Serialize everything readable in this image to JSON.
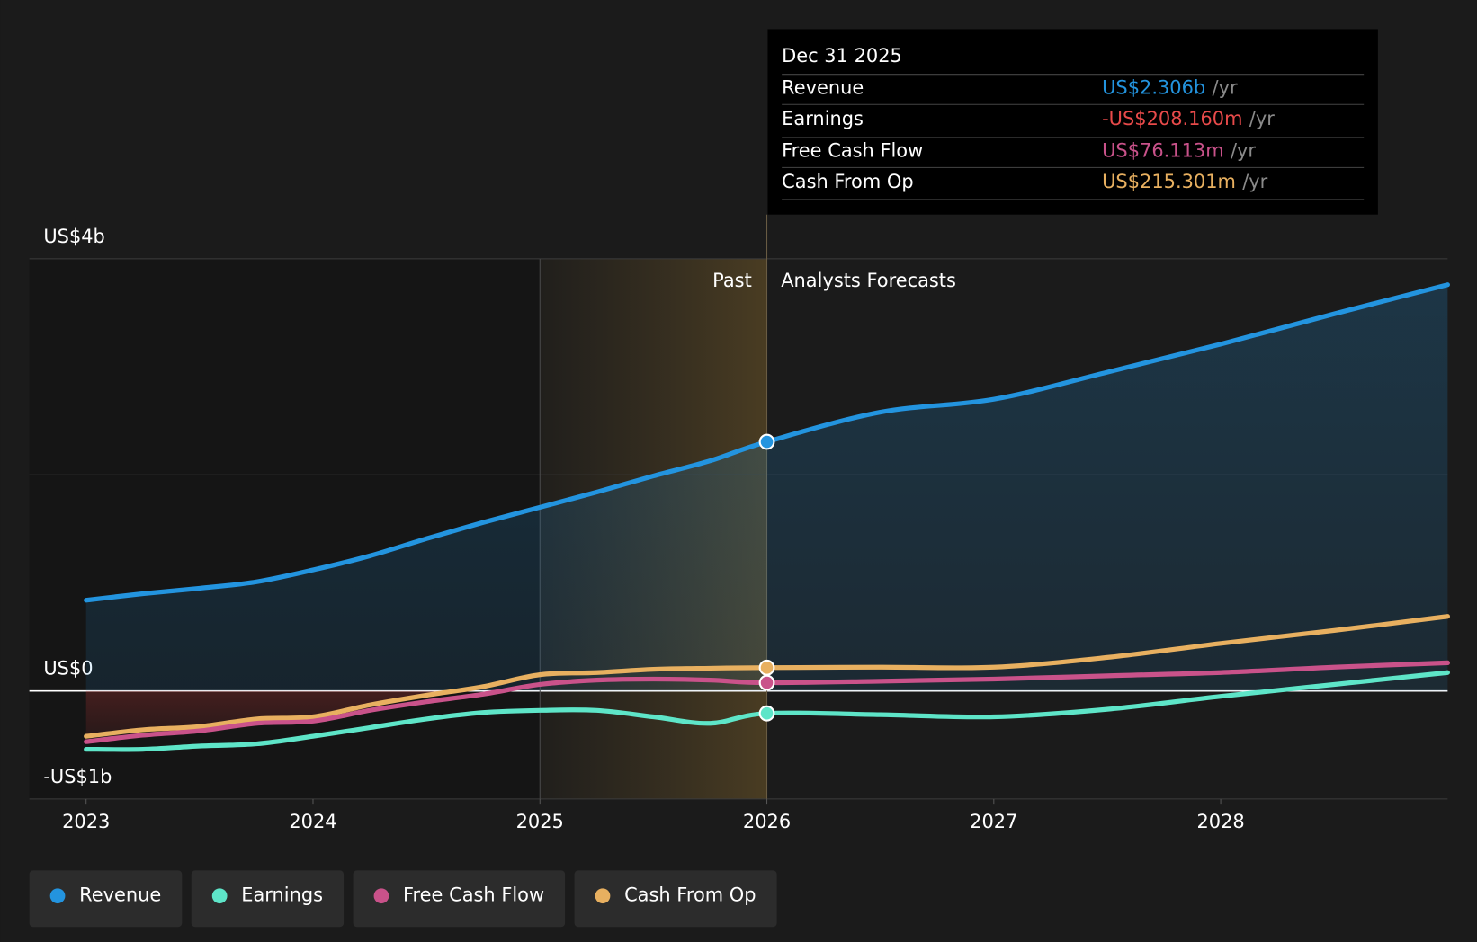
{
  "chart_data": {
    "type": "line",
    "x": [
      2023,
      2023.25,
      2023.5,
      2023.75,
      2024,
      2024.25,
      2024.5,
      2024.75,
      2025,
      2025.25,
      2025.5,
      2025.75,
      2026,
      2026.5,
      2027,
      2027.5,
      2028,
      2028.5,
      2029
    ],
    "xlim": [
      2022.75,
      2029
    ],
    "xticks": [
      2023,
      2024,
      2025,
      2026,
      2027,
      2028
    ],
    "ylim": [
      -1,
      4
    ],
    "yticks": [
      {
        "value": -1,
        "label": "-US$1b"
      },
      {
        "value": 0,
        "label": "US$0"
      },
      {
        "value": 2,
        "label": null
      },
      {
        "value": 4,
        "label": "US$4b"
      }
    ],
    "grid": true,
    "series": [
      {
        "name": "Revenue",
        "color": "#2394df",
        "values": [
          0.84,
          0.9,
          0.95,
          1.01,
          1.12,
          1.25,
          1.41,
          1.56,
          1.7,
          1.84,
          1.99,
          2.13,
          2.306,
          2.58,
          2.7,
          2.95,
          3.21,
          3.49,
          3.76
        ]
      },
      {
        "name": "Earnings",
        "color": "#5ee5c8",
        "values": [
          -0.54,
          -0.54,
          -0.51,
          -0.49,
          -0.42,
          -0.34,
          -0.26,
          -0.2,
          -0.18,
          -0.18,
          -0.24,
          -0.3,
          -0.20816,
          -0.22,
          -0.24,
          -0.17,
          -0.05,
          0.06,
          0.17
        ]
      },
      {
        "name": "Free Cash Flow",
        "color": "#c9528a",
        "values": [
          -0.47,
          -0.41,
          -0.37,
          -0.3,
          -0.28,
          -0.18,
          -0.1,
          -0.03,
          0.06,
          0.1,
          0.11,
          0.1,
          0.076113,
          0.09,
          0.11,
          0.14,
          0.17,
          0.22,
          0.26
        ]
      },
      {
        "name": "Cash From Op",
        "color": "#e8b060",
        "values": [
          -0.42,
          -0.36,
          -0.33,
          -0.26,
          -0.24,
          -0.13,
          -0.04,
          0.04,
          0.15,
          0.17,
          0.2,
          0.21,
          0.215301,
          0.22,
          0.22,
          0.31,
          0.44,
          0.56,
          0.69
        ]
      }
    ],
    "highlight_start": 2025,
    "past_end": 2026,
    "past_label": "Past",
    "forecast_label": "Analysts Forecasts",
    "tooltip": {
      "date": "Dec 31 2025",
      "values": [
        "US$2.306b",
        "-US$208.160m",
        "US$76.113m",
        "US$215.301m"
      ],
      "colors": [
        "#2394df",
        "#e84a4a",
        "#c9528a",
        "#e8b060"
      ],
      "unit": "/yr"
    }
  }
}
